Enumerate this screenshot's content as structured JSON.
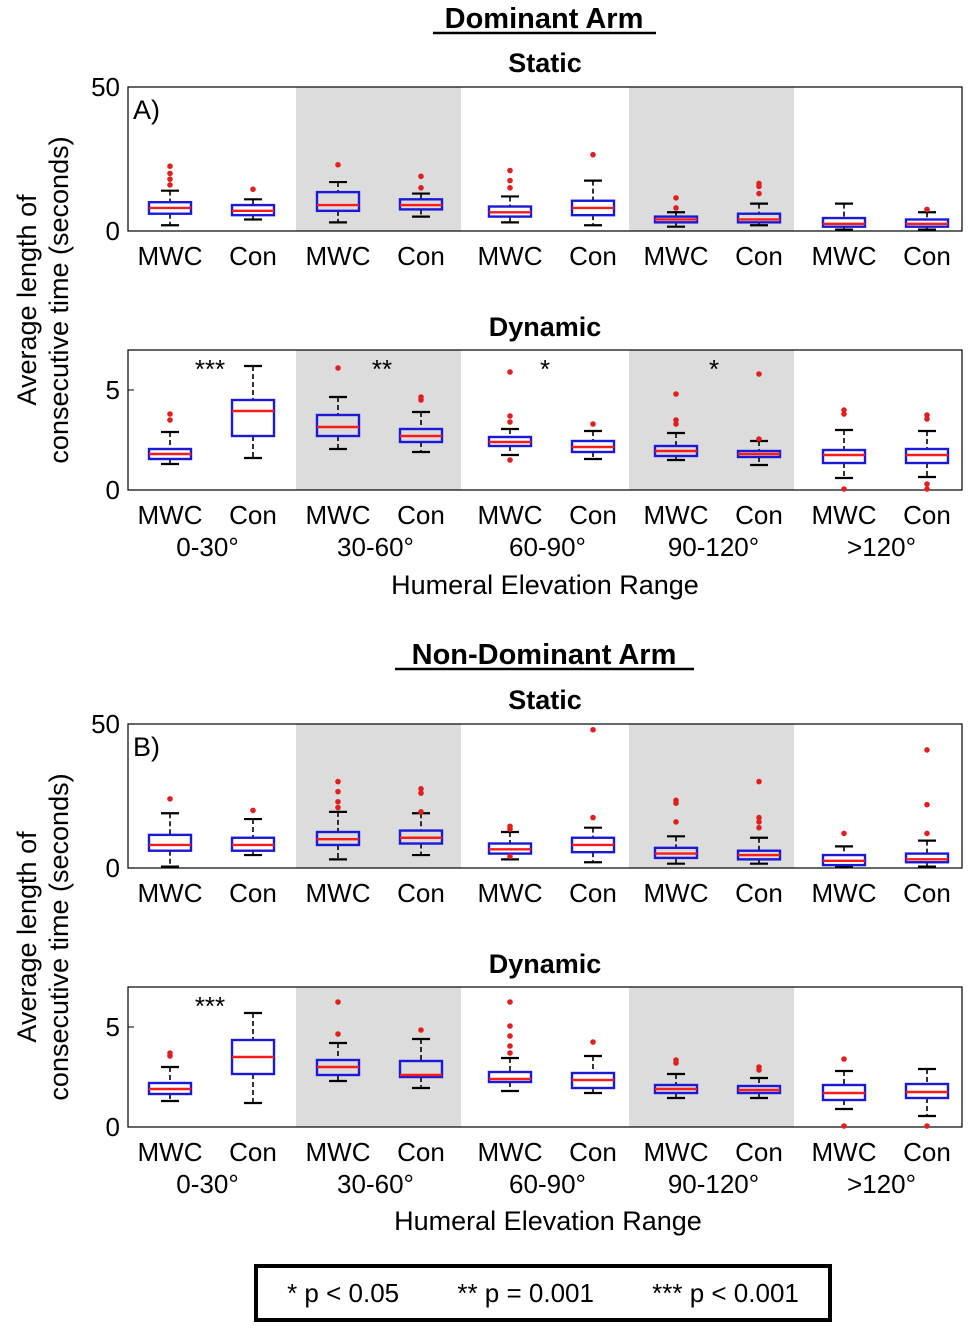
{
  "figure": {
    "section_a_title": "Dominant Arm",
    "section_b_title": "Non-Dominant Arm",
    "y_axis_label_line1": "Average length of",
    "y_axis_label_line2": "consecutive time (seconds)",
    "x_axis_label": "Humeral Elevation Range",
    "ranges": [
      "0-30°",
      "30-60°",
      "60-90°",
      "90-120°",
      ">120°"
    ],
    "groups": [
      "MWC",
      "Con"
    ],
    "legend": [
      "* p < 0.05",
      "** p = 0.001",
      "*** p < 0.001"
    ]
  },
  "chart_data": [
    {
      "type": "box",
      "title": "Static",
      "panel_label": "A)",
      "section": "Dominant Arm",
      "ylim": [
        0,
        50
      ],
      "yticks": [
        0,
        50
      ],
      "ylabel": "Average length of consecutive time (seconds)",
      "shaded_ranges": [
        "30-60°",
        "90-120°"
      ],
      "boxes": [
        {
          "range": "0-30°",
          "group": "MWC",
          "wlo": 2,
          "q1": 6,
          "med": 8,
          "q3": 10,
          "whi": 14,
          "outliers": [
            16,
            18,
            20,
            22.5
          ]
        },
        {
          "range": "0-30°",
          "group": "Con",
          "wlo": 4,
          "q1": 5.5,
          "med": 7,
          "q3": 9,
          "whi": 11,
          "outliers": [
            14.5
          ]
        },
        {
          "range": "30-60°",
          "group": "MWC",
          "wlo": 3,
          "q1": 7,
          "med": 9,
          "q3": 13.5,
          "whi": 17,
          "outliers": [
            23
          ]
        },
        {
          "range": "30-60°",
          "group": "Con",
          "wlo": 5,
          "q1": 7.5,
          "med": 9,
          "q3": 11,
          "whi": 13,
          "outliers": [
            15,
            19
          ]
        },
        {
          "range": "60-90°",
          "group": "MWC",
          "wlo": 3,
          "q1": 5,
          "med": 6.5,
          "q3": 8.5,
          "whi": 12,
          "outliers": [
            15,
            17.5,
            21
          ]
        },
        {
          "range": "60-90°",
          "group": "Con",
          "wlo": 2,
          "q1": 5.5,
          "med": 8,
          "q3": 10.5,
          "whi": 17.5,
          "outliers": [
            26.5
          ]
        },
        {
          "range": "90-120°",
          "group": "MWC",
          "wlo": 1.5,
          "q1": 3,
          "med": 4,
          "q3": 5,
          "whi": 6.5,
          "outliers": [
            8,
            11.5
          ]
        },
        {
          "range": "90-120°",
          "group": "Con",
          "wlo": 2,
          "q1": 3,
          "med": 4,
          "q3": 6,
          "whi": 9.5,
          "outliers": [
            13,
            15.5,
            16.5
          ]
        },
        {
          "range": ">120°",
          "group": "MWC",
          "wlo": 0.5,
          "q1": 1.5,
          "med": 2.5,
          "q3": 4.5,
          "whi": 9.5,
          "outliers": []
        },
        {
          "range": ">120°",
          "group": "Con",
          "wlo": 0.5,
          "q1": 1.5,
          "med": 2.5,
          "q3": 4,
          "whi": 6.5,
          "outliers": [
            7.5
          ]
        }
      ],
      "significance": []
    },
    {
      "type": "box",
      "title": "Dynamic",
      "section": "Dominant Arm",
      "ylim": [
        0,
        7
      ],
      "yticks": [
        0,
        5
      ],
      "ylabel": "Average length of consecutive time (seconds)",
      "xlabel": "Humeral Elevation Range",
      "shaded_ranges": [
        "30-60°",
        "90-120°"
      ],
      "boxes": [
        {
          "range": "0-30°",
          "group": "MWC",
          "wlo": 1.3,
          "q1": 1.55,
          "med": 1.8,
          "q3": 2.05,
          "whi": 2.9,
          "outliers": [
            3.5,
            3.8
          ]
        },
        {
          "range": "0-30°",
          "group": "Con",
          "wlo": 1.6,
          "q1": 2.7,
          "med": 3.95,
          "q3": 4.5,
          "whi": 6.2,
          "outliers": []
        },
        {
          "range": "30-60°",
          "group": "MWC",
          "wlo": 2.05,
          "q1": 2.7,
          "med": 3.15,
          "q3": 3.75,
          "whi": 4.65,
          "outliers": [
            6.1
          ]
        },
        {
          "range": "30-60°",
          "group": "Con",
          "wlo": 1.9,
          "q1": 2.4,
          "med": 2.7,
          "q3": 3.05,
          "whi": 3.9,
          "outliers": [
            4.5,
            4.65
          ]
        },
        {
          "range": "60-90°",
          "group": "MWC",
          "wlo": 1.75,
          "q1": 2.2,
          "med": 2.4,
          "q3": 2.65,
          "whi": 3.05,
          "outliers": [
            3.4,
            3.7,
            5.9,
            1.5
          ]
        },
        {
          "range": "60-90°",
          "group": "Con",
          "wlo": 1.55,
          "q1": 1.9,
          "med": 2.15,
          "q3": 2.45,
          "whi": 2.95,
          "outliers": [
            3.3
          ]
        },
        {
          "range": "90-120°",
          "group": "MWC",
          "wlo": 1.5,
          "q1": 1.7,
          "med": 1.95,
          "q3": 2.2,
          "whi": 2.85,
          "outliers": [
            3.3,
            3.5,
            4.8
          ]
        },
        {
          "range": "90-120°",
          "group": "Con",
          "wlo": 1.25,
          "q1": 1.65,
          "med": 1.8,
          "q3": 1.95,
          "whi": 2.45,
          "outliers": [
            2.55,
            5.8
          ]
        },
        {
          "range": ">120°",
          "group": "MWC",
          "wlo": 0.6,
          "q1": 1.35,
          "med": 1.75,
          "q3": 2.0,
          "whi": 3.0,
          "outliers": [
            3.8,
            4.0,
            0.05
          ]
        },
        {
          "range": ">120°",
          "group": "Con",
          "wlo": 0.65,
          "q1": 1.35,
          "med": 1.75,
          "q3": 2.05,
          "whi": 2.95,
          "outliers": [
            3.55,
            3.75,
            0.3,
            0.05
          ]
        }
      ],
      "significance": [
        {
          "range": "0-30°",
          "label": "***"
        },
        {
          "range": "30-60°",
          "label": "**"
        },
        {
          "range": "60-90°",
          "label": "*"
        },
        {
          "range": "90-120°",
          "label": "*"
        }
      ]
    },
    {
      "type": "box",
      "title": "Static",
      "panel_label": "B)",
      "section": "Non-Dominant Arm",
      "ylim": [
        0,
        50
      ],
      "yticks": [
        0,
        50
      ],
      "ylabel": "Average length of consecutive time (seconds)",
      "shaded_ranges": [
        "30-60°",
        "90-120°"
      ],
      "boxes": [
        {
          "range": "0-30°",
          "group": "MWC",
          "wlo": 0.5,
          "q1": 6,
          "med": 8,
          "q3": 11.5,
          "whi": 19,
          "outliers": [
            24
          ]
        },
        {
          "range": "0-30°",
          "group": "Con",
          "wlo": 4.5,
          "q1": 6,
          "med": 8,
          "q3": 10.5,
          "whi": 17,
          "outliers": [
            20
          ]
        },
        {
          "range": "30-60°",
          "group": "MWC",
          "wlo": 3,
          "q1": 8,
          "med": 10,
          "q3": 12.5,
          "whi": 19.5,
          "outliers": [
            21,
            23,
            26.5,
            30
          ]
        },
        {
          "range": "30-60°",
          "group": "Con",
          "wlo": 4.5,
          "q1": 8.5,
          "med": 10.5,
          "q3": 13,
          "whi": 19,
          "outliers": [
            19.5,
            26,
            27.5
          ]
        },
        {
          "range": "60-90°",
          "group": "MWC",
          "wlo": 3,
          "q1": 5,
          "med": 6.5,
          "q3": 8.5,
          "whi": 12.5,
          "outliers": [
            13.5,
            14.5,
            4
          ]
        },
        {
          "range": "60-90°",
          "group": "Con",
          "wlo": 2,
          "q1": 5.5,
          "med": 8,
          "q3": 10.5,
          "whi": 14,
          "outliers": [
            17.5,
            48
          ]
        },
        {
          "range": "90-120°",
          "group": "MWC",
          "wlo": 1.5,
          "q1": 3.5,
          "med": 5,
          "q3": 7,
          "whi": 11,
          "outliers": [
            16,
            22.5,
            23.5
          ]
        },
        {
          "range": "90-120°",
          "group": "Con",
          "wlo": 1.5,
          "q1": 3,
          "med": 4.5,
          "q3": 6,
          "whi": 10.5,
          "outliers": [
            14,
            16,
            17.5,
            30
          ]
        },
        {
          "range": ">120°",
          "group": "MWC",
          "wlo": 0.5,
          "q1": 1,
          "med": 2.5,
          "q3": 4.5,
          "whi": 7.5,
          "outliers": [
            12
          ]
        },
        {
          "range": ">120°",
          "group": "Con",
          "wlo": 0.5,
          "q1": 2,
          "med": 3,
          "q3": 5,
          "whi": 9.5,
          "outliers": [
            12,
            22,
            41
          ]
        }
      ],
      "significance": []
    },
    {
      "type": "box",
      "title": "Dynamic",
      "section": "Non-Dominant Arm",
      "ylim": [
        0,
        7
      ],
      "yticks": [
        0,
        5
      ],
      "ylabel": "Average length of consecutive time (seconds)",
      "xlabel": "Humeral Elevation Range",
      "shaded_ranges": [
        "30-60°",
        "90-120°"
      ],
      "boxes": [
        {
          "range": "0-30°",
          "group": "MWC",
          "wlo": 1.3,
          "q1": 1.65,
          "med": 1.9,
          "q3": 2.2,
          "whi": 3.0,
          "outliers": [
            3.55,
            3.7
          ]
        },
        {
          "range": "0-30°",
          "group": "Con",
          "wlo": 1.2,
          "q1": 2.65,
          "med": 3.5,
          "q3": 4.35,
          "whi": 5.7,
          "outliers": []
        },
        {
          "range": "30-60°",
          "group": "MWC",
          "wlo": 2.3,
          "q1": 2.6,
          "med": 3.0,
          "q3": 3.35,
          "whi": 4.2,
          "outliers": [
            4.65,
            6.25
          ]
        },
        {
          "range": "30-60°",
          "group": "Con",
          "wlo": 1.95,
          "q1": 2.5,
          "med": 2.6,
          "q3": 3.3,
          "whi": 4.4,
          "outliers": [
            4.85
          ]
        },
        {
          "range": "60-90°",
          "group": "MWC",
          "wlo": 1.8,
          "q1": 2.25,
          "med": 2.4,
          "q3": 2.75,
          "whi": 3.45,
          "outliers": [
            3.7,
            4.05,
            4.55,
            5.05,
            6.25
          ]
        },
        {
          "range": "60-90°",
          "group": "Con",
          "wlo": 1.7,
          "q1": 1.95,
          "med": 2.35,
          "q3": 2.7,
          "whi": 3.55,
          "outliers": [
            4.25
          ]
        },
        {
          "range": "90-120°",
          "group": "MWC",
          "wlo": 1.45,
          "q1": 1.7,
          "med": 1.9,
          "q3": 2.1,
          "whi": 2.65,
          "outliers": [
            3.2,
            3.35
          ]
        },
        {
          "range": "90-120°",
          "group": "Con",
          "wlo": 1.45,
          "q1": 1.7,
          "med": 1.85,
          "q3": 2.05,
          "whi": 2.45,
          "outliers": [
            2.85,
            3.0
          ]
        },
        {
          "range": ">120°",
          "group": "MWC",
          "wlo": 0.9,
          "q1": 1.35,
          "med": 1.7,
          "q3": 2.1,
          "whi": 2.8,
          "outliers": [
            3.4,
            0.05
          ]
        },
        {
          "range": ">120°",
          "group": "Con",
          "wlo": 0.55,
          "q1": 1.45,
          "med": 1.75,
          "q3": 2.15,
          "whi": 2.9,
          "outliers": [
            0.05
          ]
        }
      ],
      "significance": [
        {
          "range": "0-30°",
          "label": "***"
        }
      ]
    }
  ]
}
